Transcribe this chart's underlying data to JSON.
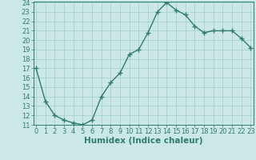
{
  "x": [
    0,
    1,
    2,
    3,
    4,
    5,
    6,
    7,
    8,
    9,
    10,
    11,
    12,
    13,
    14,
    15,
    16,
    17,
    18,
    19,
    20,
    21,
    22,
    23
  ],
  "y": [
    17.0,
    13.5,
    12.0,
    11.5,
    11.2,
    11.0,
    11.5,
    14.0,
    15.5,
    16.5,
    18.5,
    19.0,
    20.8,
    23.0,
    24.0,
    23.2,
    22.7,
    21.5,
    20.8,
    21.0,
    21.0,
    21.0,
    20.2,
    19.2
  ],
  "ylim_min": 11,
  "ylim_max": 24,
  "xlim_min": 0,
  "xlim_max": 23,
  "yticks": [
    11,
    12,
    13,
    14,
    15,
    16,
    17,
    18,
    19,
    20,
    21,
    22,
    23,
    24
  ],
  "xticks": [
    0,
    1,
    2,
    3,
    4,
    5,
    6,
    7,
    8,
    9,
    10,
    11,
    12,
    13,
    14,
    15,
    16,
    17,
    18,
    19,
    20,
    21,
    22,
    23
  ],
  "xlabel": "Humidex (Indice chaleur)",
  "line_color": "#2e7d6e",
  "marker": "+",
  "bg_color": "#cce8e6",
  "grid_color": "#9ecfcc",
  "axis_color": "#2e7d6e",
  "label_color": "#2e7d6e",
  "xlabel_fontsize": 7.5,
  "tick_fontsize": 6,
  "linewidth": 1.0,
  "markersize": 4,
  "markeredgewidth": 1.0
}
